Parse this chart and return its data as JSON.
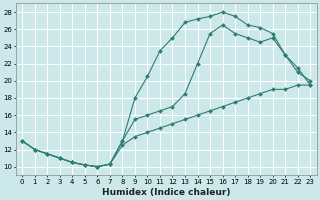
{
  "xlabel": "Humidex (Indice chaleur)",
  "bg_color": "#cce8ea",
  "grid_color": "#ffffff",
  "line_color": "#2e7d6e",
  "xlim": [
    -0.5,
    23.5
  ],
  "ylim": [
    9,
    29
  ],
  "xticks": [
    0,
    1,
    2,
    3,
    4,
    5,
    6,
    7,
    8,
    9,
    10,
    11,
    12,
    13,
    14,
    15,
    16,
    17,
    18,
    19,
    20,
    21,
    22,
    23
  ],
  "yticks": [
    10,
    12,
    14,
    16,
    18,
    20,
    22,
    24,
    26,
    28
  ],
  "curve1_x": [
    0,
    1,
    2,
    3,
    4,
    5,
    6,
    7,
    8,
    9,
    10,
    11,
    12,
    13,
    14,
    15,
    16,
    17,
    18,
    19,
    20,
    21,
    22,
    23
  ],
  "curve1_y": [
    13,
    12,
    11.5,
    11,
    10.5,
    10.2,
    10,
    10.3,
    13,
    18,
    20.5,
    23.5,
    25,
    26.8,
    27.2,
    27.5,
    28,
    27.5,
    26.5,
    26.2,
    25.5,
    23,
    21,
    20
  ],
  "curve2_x": [
    0,
    1,
    2,
    3,
    4,
    5,
    6,
    7,
    8,
    9,
    10,
    11,
    12,
    13,
    14,
    15,
    16,
    17,
    18,
    19,
    20,
    21,
    22,
    23
  ],
  "curve2_y": [
    13,
    12,
    11.5,
    11,
    10.5,
    10.2,
    10,
    10.3,
    13,
    15.5,
    16,
    16.5,
    17,
    18.5,
    22,
    25.5,
    26.5,
    25.5,
    25,
    24.5,
    25,
    23,
    21.5,
    19.5
  ],
  "curve3_x": [
    0,
    1,
    2,
    3,
    4,
    5,
    6,
    7,
    8,
    9,
    10,
    11,
    12,
    13,
    14,
    15,
    16,
    17,
    18,
    19,
    20,
    21,
    22,
    23
  ],
  "curve3_y": [
    13,
    12,
    11.5,
    11,
    10.5,
    10.2,
    10,
    10.3,
    12.5,
    13.5,
    14,
    14.5,
    15,
    15.5,
    16,
    16.5,
    17,
    17.5,
    18,
    18.5,
    19,
    19,
    19.5,
    19.5
  ]
}
